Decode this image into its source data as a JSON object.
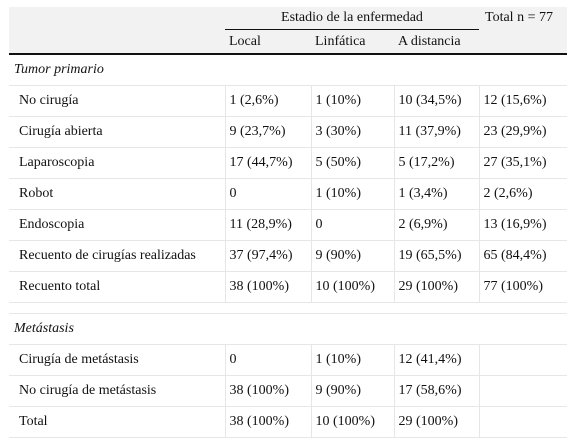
{
  "header": {
    "stage_group": "Estadio de la enfermedad",
    "total": "Total n = 77",
    "col_local": "Local",
    "col_lymph": "Linfática",
    "col_distant": "A distancia"
  },
  "sections": {
    "primary": {
      "title": "Tumor primario",
      "rows": [
        {
          "label": "No cirugía",
          "local": "1 (2,6%)",
          "lymph": "1 (10%)",
          "distant": "10 (34,5%)",
          "total": "12 (15,6%)"
        },
        {
          "label": "Cirugía abierta",
          "local": "9 (23,7%)",
          "lymph": "3 (30%)",
          "distant": "11 (37,9%)",
          "total": "23 (29,9%)"
        },
        {
          "label": "Laparoscopia",
          "local": "17 (44,7%)",
          "lymph": "5 (50%)",
          "distant": "5 (17,2%)",
          "total": "27 (35,1%)"
        },
        {
          "label": "Robot",
          "local": "0",
          "lymph": "1 (10%)",
          "distant": "1 (3,4%)",
          "total": "2 (2,6%)"
        },
        {
          "label": "Endoscopia",
          "local": "11 (28,9%)",
          "lymph": "0",
          "distant": "2 (6,9%)",
          "total": "13 (16,9%)"
        },
        {
          "label": "Recuento de cirugías realizadas",
          "local": "37 (97,4%)",
          "lymph": "9 (90%)",
          "distant": "19 (65,5%)",
          "total": "65 (84,4%)"
        },
        {
          "label": "Recuento total",
          "local": "38 (100%)",
          "lymph": "10 (100%)",
          "distant": "29 (100%)",
          "total": "77 (100%)"
        }
      ]
    },
    "metastasis": {
      "title": "Metástasis",
      "rows": [
        {
          "label": "Cirugía de metástasis",
          "local": "0",
          "lymph": "1 (10%)",
          "distant": "12 (41,4%)",
          "total": ""
        },
        {
          "label": "No cirugía de metástasis",
          "local": "38 (100%)",
          "lymph": "9 (90%)",
          "distant": "17 (58,6%)",
          "total": ""
        },
        {
          "label": "Total",
          "local": "38 (100%)",
          "lymph": "10 (100%)",
          "distant": "29 (100%)",
          "total": ""
        }
      ]
    }
  }
}
